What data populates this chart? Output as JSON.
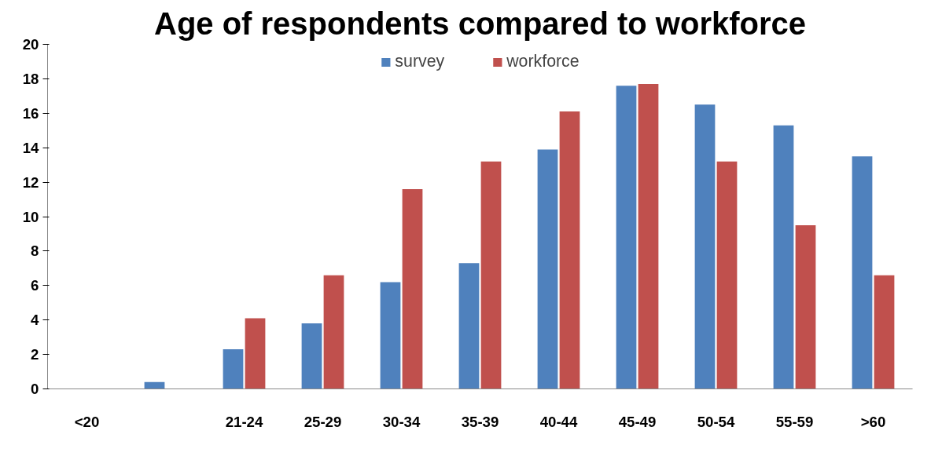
{
  "chart_data": {
    "type": "bar",
    "title": "Age of respondents compared to workforce",
    "categories": [
      "<20",
      null,
      "21-24",
      "25-29",
      "30-34",
      "35-39",
      "40-44",
      "45-49",
      "50-54",
      "55-59",
      ">60"
    ],
    "series": [
      {
        "name": "survey",
        "color": "#4f81bd",
        "values": [
          0,
          0.4,
          2.3,
          3.8,
          6.2,
          7.3,
          13.9,
          17.6,
          16.5,
          15.3,
          13.5
        ]
      },
      {
        "name": "workforce",
        "color": "#c0504d",
        "values": [
          0,
          0,
          4.1,
          6.6,
          11.6,
          13.2,
          16.1,
          17.7,
          13.2,
          9.5,
          6.6
        ]
      }
    ],
    "ylim": [
      0,
      20
    ],
    "yticks": [
      0,
      2,
      4,
      6,
      8,
      10,
      12,
      14,
      16,
      18,
      20
    ],
    "grid": false,
    "legend": "top"
  }
}
